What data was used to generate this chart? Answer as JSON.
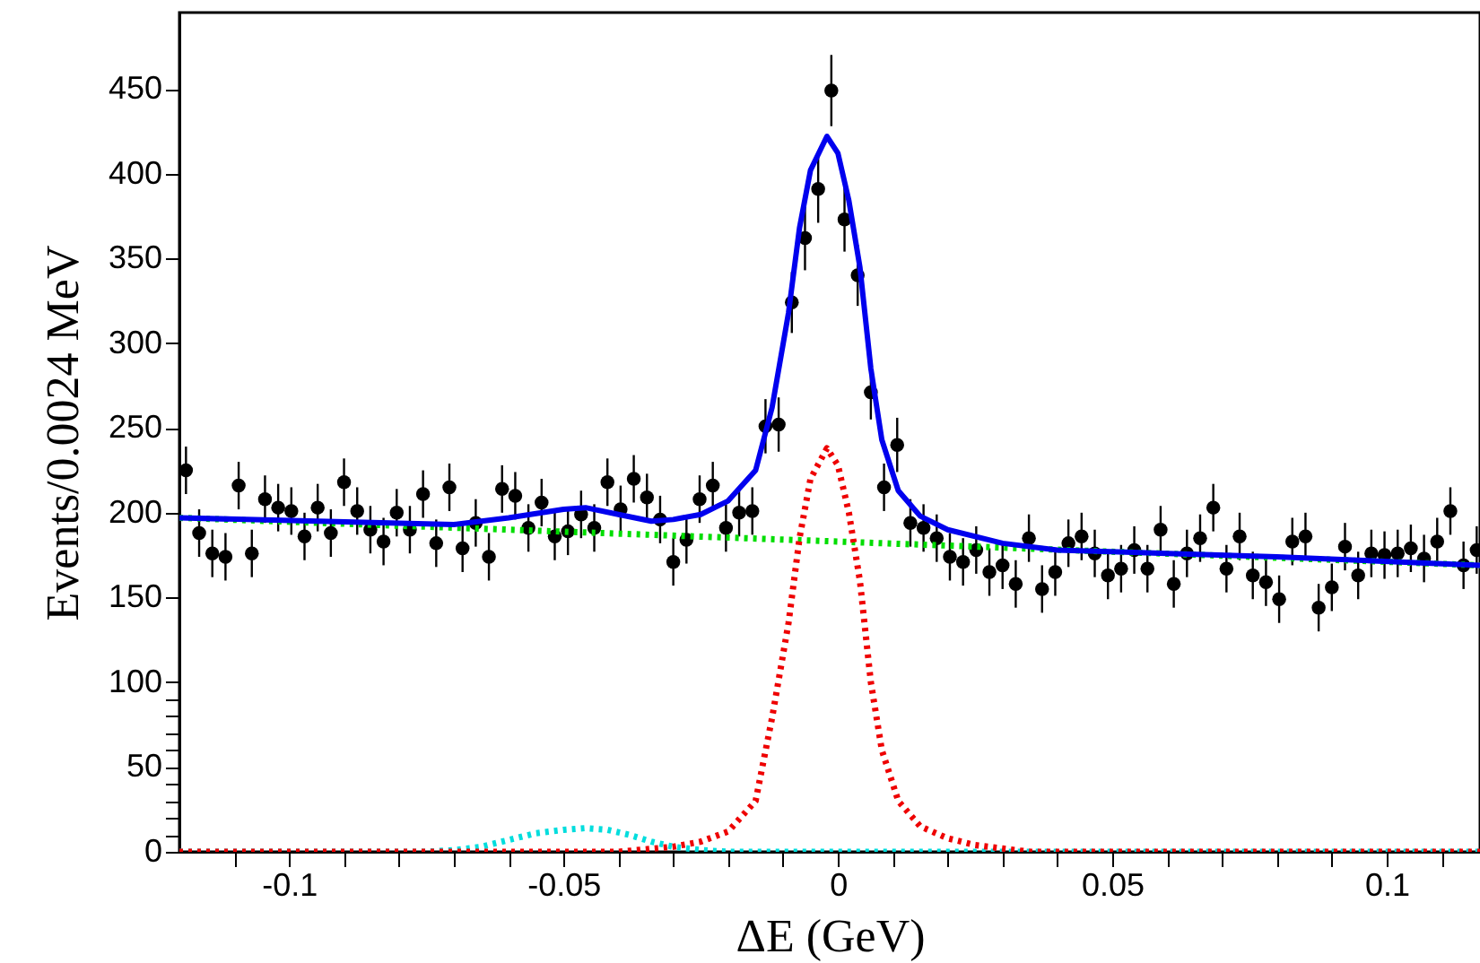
{
  "chart_data": {
    "type": "scatter",
    "xlabel": "ΔE (GeV)",
    "ylabel": "Events/0.0024 MeV",
    "xlim": [
      -0.12,
      0.117
    ],
    "ylim": [
      0,
      495
    ],
    "xticks": [
      {
        "value": -0.11,
        "label": null
      },
      {
        "value": -0.1,
        "label": "-0.1"
      },
      {
        "value": -0.09,
        "label": null
      },
      {
        "value": -0.08,
        "label": null
      },
      {
        "value": -0.07,
        "label": null
      },
      {
        "value": -0.06,
        "label": null
      },
      {
        "value": -0.05,
        "label": "-0.05"
      },
      {
        "value": -0.04,
        "label": null
      },
      {
        "value": -0.03,
        "label": null
      },
      {
        "value": -0.02,
        "label": null
      },
      {
        "value": -0.01,
        "label": null
      },
      0,
      {
        "value": 0.01,
        "label": null
      },
      {
        "value": 0.02,
        "label": null
      },
      {
        "value": 0.03,
        "label": null
      },
      {
        "value": 0.04,
        "label": null
      },
      0.05,
      {
        "value": 0.06,
        "label": null
      },
      {
        "value": 0.07,
        "label": null
      },
      {
        "value": 0.08,
        "label": null
      },
      {
        "value": 0.09,
        "label": null
      },
      0.1,
      {
        "value": 0.11,
        "label": null
      }
    ],
    "yticks": [
      0,
      {
        "value": 10,
        "label": null
      },
      {
        "value": 20,
        "label": null
      },
      {
        "value": 30,
        "label": null
      },
      {
        "value": 40,
        "label": null
      },
      50,
      {
        "value": 60,
        "label": null
      },
      {
        "value": 70,
        "label": null
      },
      {
        "value": 80,
        "label": null
      },
      {
        "value": 90,
        "label": null
      },
      100,
      150,
      200,
      250,
      300,
      350,
      400,
      450
    ],
    "grid": false,
    "x": [
      -0.1188,
      -0.1164,
      -0.114,
      -0.1116,
      -0.1092,
      -0.1068,
      -0.1044,
      -0.102,
      -0.0996,
      -0.0972,
      -0.0948,
      -0.0924,
      -0.09,
      -0.0876,
      -0.0852,
      -0.0828,
      -0.0804,
      -0.078,
      -0.0756,
      -0.0732,
      -0.0708,
      -0.0684,
      -0.066,
      -0.0636,
      -0.0612,
      -0.0588,
      -0.0564,
      -0.054,
      -0.0516,
      -0.0492,
      -0.0468,
      -0.0444,
      -0.042,
      -0.0396,
      -0.0372,
      -0.0348,
      -0.0324,
      -0.03,
      -0.0276,
      -0.0252,
      -0.0228,
      -0.0204,
      -0.018,
      -0.0156,
      -0.0132,
      -0.0108,
      -0.0084,
      -0.006,
      -0.0036,
      -0.0012,
      0.0012,
      0.0036,
      0.006,
      0.0084,
      0.0108,
      0.0132,
      0.0156,
      0.018,
      0.0204,
      0.0228,
      0.0252,
      0.0276,
      0.03,
      0.0324,
      0.0348,
      0.0372,
      0.0396,
      0.042,
      0.0444,
      0.0468,
      0.0492,
      0.0516,
      0.054,
      0.0564,
      0.0588,
      0.0612,
      0.0636,
      0.066,
      0.0684,
      0.0708,
      0.0732,
      0.0756,
      0.078,
      0.0804,
      0.0828,
      0.0852,
      0.0876,
      0.09,
      0.0924,
      0.0948,
      0.0972,
      0.0996,
      0.102,
      0.1044,
      0.1068,
      0.1092,
      0.1116,
      0.114,
      0.1164
    ],
    "series": [
      {
        "color": "#000000",
        "marker": "circle",
        "values": [
          225,
          188,
          176,
          174,
          216,
          176,
          208,
          203,
          201,
          186,
          203,
          188,
          218,
          201,
          190,
          183,
          200,
          190,
          211,
          182,
          215,
          179,
          194,
          174,
          214,
          210,
          191,
          206,
          186,
          189,
          199,
          191,
          218,
          202,
          220,
          209,
          196,
          171,
          184,
          208,
          216,
          191,
          200,
          201,
          251,
          252,
          324,
          362,
          391,
          449,
          373,
          340,
          271,
          215,
          240,
          194,
          191,
          185,
          174,
          171,
          178,
          165,
          169,
          158,
          185,
          155,
          165,
          182,
          186,
          176,
          163,
          167,
          178,
          167,
          190,
          158,
          176,
          185,
          203,
          167,
          186,
          163,
          159,
          149,
          183,
          186,
          144,
          156,
          180,
          163,
          176,
          175,
          176,
          179,
          173,
          183,
          201,
          169,
          178
        ],
        "errors": [
          14,
          14,
          14,
          14,
          14,
          14,
          14,
          14,
          14,
          14,
          14,
          14,
          14,
          14,
          14,
          14,
          14,
          14,
          14,
          14,
          14,
          14,
          14,
          14,
          14,
          14,
          14,
          14,
          14,
          14,
          14,
          14,
          14,
          14,
          14,
          14,
          14,
          14,
          14,
          14,
          14,
          14,
          14,
          14,
          16,
          16,
          18,
          19,
          20,
          21,
          19,
          18,
          16,
          14,
          16,
          14,
          14,
          14,
          14,
          14,
          14,
          14,
          14,
          14,
          14,
          14,
          14,
          14,
          14,
          14,
          14,
          14,
          14,
          14,
          14,
          14,
          14,
          14,
          14,
          14,
          14,
          14,
          14,
          14,
          14,
          14,
          14,
          14,
          14,
          14,
          14,
          14,
          14,
          14,
          14,
          14,
          14,
          14,
          14
        ]
      },
      {
        "type": "line",
        "color": "#00dd00",
        "line_style": "dotted",
        "x": [
          -0.12,
          0,
          0.117
        ],
        "values": [
          197,
          183,
          169
        ]
      },
      {
        "type": "line",
        "color": "#00dddd",
        "line_style": "dotted",
        "x": [
          -0.12,
          -0.075,
          -0.07,
          -0.065,
          -0.06,
          -0.055,
          -0.05,
          -0.046,
          -0.042,
          -0.038,
          -0.034,
          -0.03,
          -0.025,
          -0.02,
          0.117
        ],
        "values": [
          0,
          0,
          1,
          3,
          7,
          11,
          13,
          14,
          13,
          10,
          6,
          3,
          1,
          0,
          0
        ]
      },
      {
        "type": "line",
        "color": "#ee0000",
        "line_style": "dotted",
        "x": [
          -0.12,
          -0.04,
          -0.03,
          -0.025,
          -0.02,
          -0.015,
          -0.012,
          -0.009,
          -0.007,
          -0.005,
          -0.002,
          0,
          0.002,
          0.004,
          0.006,
          0.008,
          0.011,
          0.015,
          0.02,
          0.025,
          0.03,
          0.035,
          0.117
        ],
        "values": [
          0,
          0,
          3,
          6,
          12,
          30,
          79,
          135,
          185,
          220,
          238,
          228,
          200,
          160,
          100,
          60,
          30,
          15,
          8,
          4,
          2,
          0,
          0
        ]
      },
      {
        "type": "line",
        "color": "#0000ee",
        "line_style": "solid",
        "x": [
          -0.12,
          -0.07,
          -0.06,
          -0.05,
          -0.046,
          -0.04,
          -0.034,
          -0.03,
          -0.025,
          -0.02,
          -0.015,
          -0.012,
          -0.009,
          -0.007,
          -0.005,
          -0.002,
          0,
          0.002,
          0.004,
          0.006,
          0.008,
          0.011,
          0.015,
          0.02,
          0.03,
          0.04,
          0.06,
          0.08,
          0.117
        ],
        "values": [
          197,
          193,
          197,
          202,
          203,
          199,
          195,
          196,
          199,
          207,
          225,
          262,
          318,
          368,
          402,
          422,
          412,
          384,
          345,
          285,
          243,
          213,
          198,
          190,
          182,
          178,
          176,
          174,
          169
        ]
      }
    ]
  }
}
